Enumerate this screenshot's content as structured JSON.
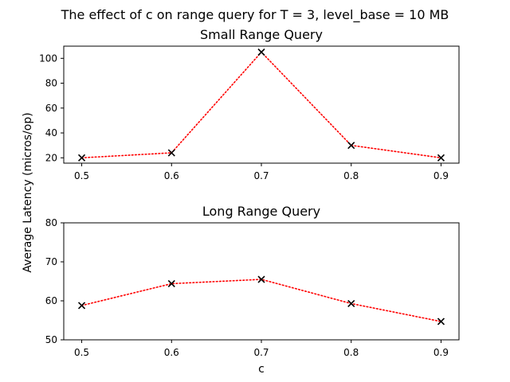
{
  "suptitle": "The effect of c on range query for T = 3, level_base = 10 MB",
  "ylabel": "Average Latency (micros/op)",
  "colors": {
    "line": "#ff0000",
    "marker": "#000000",
    "axes": "#000000",
    "background": "#ffffff"
  },
  "chart_data": [
    {
      "type": "line",
      "title": "Small Range Query",
      "xlabel": "",
      "x": [
        0.5,
        0.6,
        0.7,
        0.8,
        0.9
      ],
      "x_tick_labels": [
        "0.5",
        "0.6",
        "0.7",
        "0.8",
        "0.9"
      ],
      "xlim": [
        0.48,
        0.92
      ],
      "y_ticks": [
        20,
        40,
        60,
        80,
        100
      ],
      "ylim": [
        15.7,
        109.8
      ],
      "grid": false,
      "line_style": "dotted",
      "marker": "x",
      "series": [
        {
          "values": [
            20.0,
            24.0,
            105.0,
            30.0,
            20.0
          ]
        }
      ]
    },
    {
      "type": "line",
      "title": "Long Range Query",
      "xlabel": "c",
      "x": [
        0.5,
        0.6,
        0.7,
        0.8,
        0.9
      ],
      "x_tick_labels": [
        "0.5",
        "0.6",
        "0.7",
        "0.8",
        "0.9"
      ],
      "xlim": [
        0.48,
        0.92
      ],
      "y_ticks": [
        50,
        60,
        70,
        80
      ],
      "ylim": [
        50,
        80
      ],
      "grid": false,
      "line_style": "dotted",
      "marker": "x",
      "series": [
        {
          "values": [
            58.8,
            64.4,
            65.5,
            59.3,
            54.7
          ]
        }
      ]
    }
  ]
}
